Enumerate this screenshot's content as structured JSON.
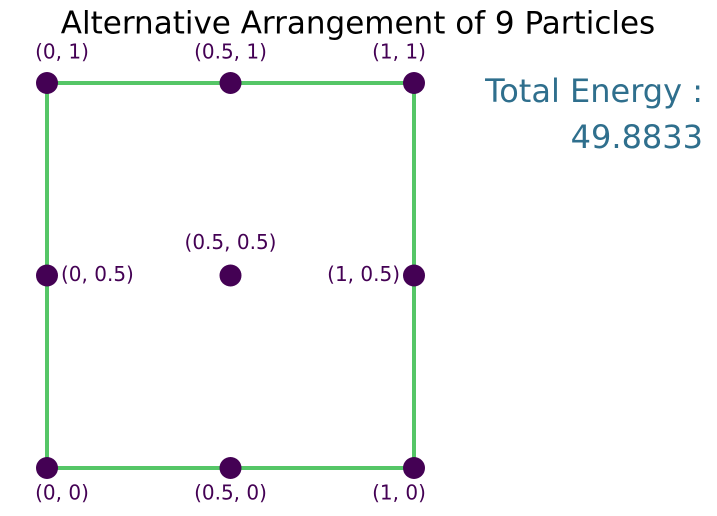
{
  "chart_data": {
    "type": "scatter",
    "title": "Alternative Arrangement of 9 Particles",
    "x": [
      0,
      0.5,
      1,
      0,
      0.5,
      1,
      0,
      0.5,
      1
    ],
    "y": [
      1,
      1,
      1,
      0.5,
      0.5,
      0.5,
      0,
      0,
      0
    ],
    "labels": [
      "(0, 1)",
      "(0.5, 1)",
      "(1, 1)",
      "(0, 0.5)",
      "(0.5, 0.5)",
      "(1, 0.5)",
      "(0, 0)",
      "(0.5, 0)",
      "(1, 0)"
    ],
    "color": "#440154",
    "outline": {
      "x": [
        0,
        1,
        1,
        0,
        0
      ],
      "y": [
        0,
        0,
        1,
        1,
        0
      ],
      "color": "#55c667"
    },
    "xlim": [
      0,
      1
    ],
    "ylim": [
      0,
      1
    ],
    "annotation": {
      "label": "Total Energy :",
      "value": 49.8833,
      "color": "#2f6f8d"
    }
  }
}
